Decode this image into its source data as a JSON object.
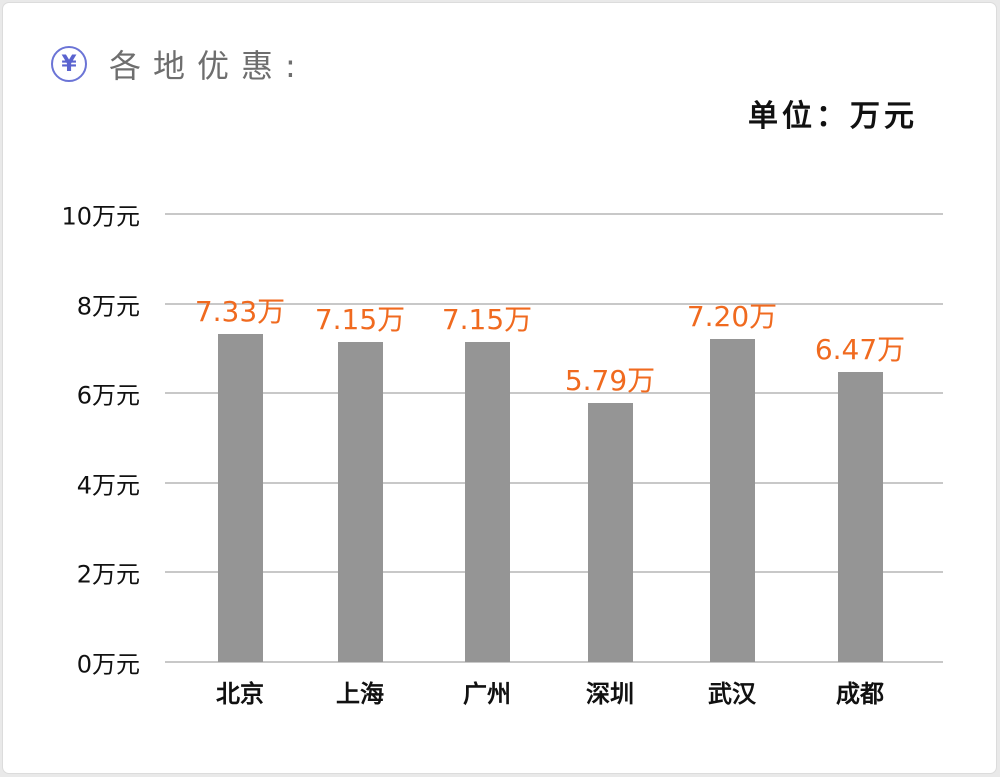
{
  "header": {
    "icon": "yen-circle-icon",
    "icon_glyph": "¥",
    "title": "各地优惠:"
  },
  "unit_label": "单位：万元",
  "colors": {
    "bar": "#959595",
    "value_label": "#f06a1f",
    "icon": "#6b74d6",
    "gridline": "#c8c8c8"
  },
  "chart_data": {
    "type": "bar",
    "title": "各地优惠:",
    "unit": "单位：万元",
    "categories": [
      "北京",
      "上海",
      "广州",
      "深圳",
      "武汉",
      "成都"
    ],
    "values": [
      7.33,
      7.15,
      7.15,
      5.79,
      7.2,
      6.47
    ],
    "value_labels": [
      "7.33万",
      "7.15万",
      "7.15万",
      "5.79万",
      "7.20万",
      "6.47万"
    ],
    "xlabel": "",
    "ylabel": "",
    "ylim": [
      0,
      10
    ],
    "yticks": [
      0,
      2,
      4,
      6,
      8,
      10
    ],
    "ytick_labels": [
      "0万元",
      "2万元",
      "4万元",
      "6万元",
      "8万元",
      "10万元"
    ],
    "grid": true,
    "legend": null
  }
}
